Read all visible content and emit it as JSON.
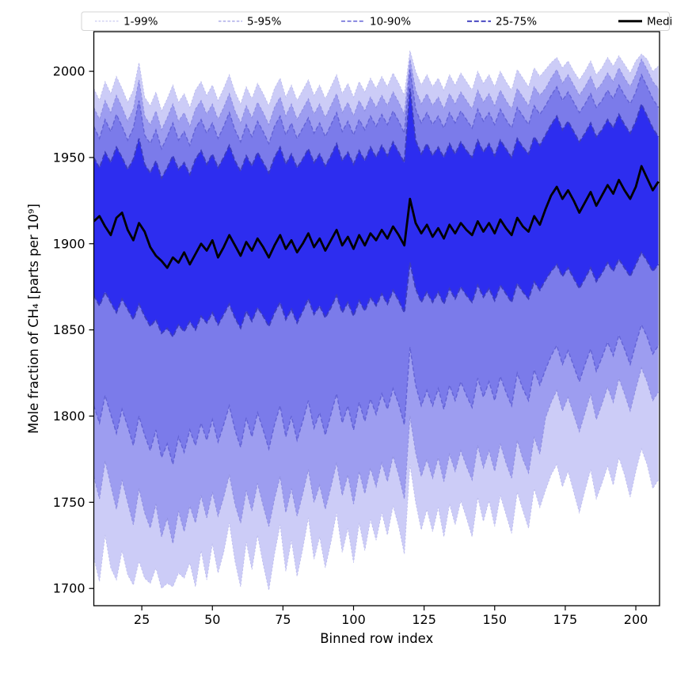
{
  "figure": {
    "background": "#ffffff"
  },
  "legend": {
    "border_color": "#d4d4d4",
    "background": "#ffffff",
    "entries": [
      {
        "label": "1-99%",
        "color": "#bdbdee",
        "width": 1.0,
        "dash": "2.5 2"
      },
      {
        "label": "5-95%",
        "color": "#9090e2",
        "width": 1.2,
        "dash": "3.5 2.2"
      },
      {
        "label": "10-90%",
        "color": "#6363d6",
        "width": 1.5,
        "dash": "5 2.6"
      },
      {
        "label": "25-75%",
        "color": "#3c3cbe",
        "width": 1.9,
        "dash": "6 2.8"
      },
      {
        "label": "Median",
        "color": "#000000",
        "width": 3.0,
        "dash": ""
      }
    ]
  },
  "axes": {
    "x": {
      "label": "Binned row index",
      "ticks": [
        25,
        50,
        75,
        100,
        125,
        150,
        175,
        200
      ]
    },
    "y": {
      "label": "Mole fraction of CH₄ [parts per 10⁹]",
      "ticks": [
        1700,
        1750,
        1800,
        1850,
        1900,
        1950,
        2000
      ]
    }
  },
  "chart_data": {
    "type": "area",
    "title": "",
    "xlabel": "Binned row index",
    "ylabel": "Mole fraction of CH₄ [parts per 10⁹]",
    "x": {
      "start": 8,
      "step": 2,
      "count": 101
    },
    "xlim": [
      8,
      208.4
    ],
    "ylim": [
      1690,
      2023
    ],
    "grid": false,
    "legend_position": "top",
    "bands": [
      {
        "label": "1-99%",
        "lo": "p1",
        "hi": "p99",
        "fill": "#ccccf7",
        "edge": "#bdbdee",
        "edge_width": 0.9,
        "dash": "2.5 2"
      },
      {
        "label": "5-95%",
        "lo": "p5",
        "hi": "p95",
        "fill": "#9d9df0",
        "edge": "#9090e2",
        "edge_width": 1.1,
        "dash": "3.5 2.2"
      },
      {
        "label": "10-90%",
        "lo": "p10",
        "hi": "p90",
        "fill": "#7b7bea",
        "edge": "#6363d6",
        "edge_width": 1.4,
        "dash": "5 2.6"
      },
      {
        "label": "25-75%",
        "lo": "p25",
        "hi": "p75",
        "fill": "#2d2def",
        "edge": "#3c3cbe",
        "edge_width": 1.8,
        "dash": "6 2.8"
      }
    ],
    "median_style": {
      "label": "Median",
      "color": "#000000",
      "width": 2.8
    },
    "series": {
      "p1": [
        1718,
        1704,
        1731,
        1712,
        1705,
        1722,
        1708,
        1702,
        1716,
        1706,
        1703,
        1712,
        1700,
        1703,
        1701,
        1709,
        1706,
        1715,
        1701,
        1722,
        1705,
        1726,
        1709,
        1721,
        1738,
        1716,
        1701,
        1727,
        1711,
        1731,
        1714,
        1699,
        1720,
        1737,
        1710,
        1728,
        1707,
        1723,
        1741,
        1717,
        1730,
        1712,
        1727,
        1744,
        1721,
        1735,
        1715,
        1738,
        1722,
        1740,
        1728,
        1744,
        1731,
        1748,
        1736,
        1720,
        1772,
        1750,
        1734,
        1746,
        1733,
        1747,
        1730,
        1749,
        1737,
        1751,
        1741,
        1730,
        1753,
        1739,
        1751,
        1736,
        1754,
        1743,
        1732,
        1756,
        1745,
        1735,
        1758,
        1747,
        1757,
        1766,
        1772,
        1759,
        1768,
        1756,
        1744,
        1757,
        1769,
        1752,
        1761,
        1771,
        1760,
        1776,
        1766,
        1753,
        1768,
        1781,
        1772,
        1758,
        1763
      ],
      "p5": [
        1765,
        1752,
        1774,
        1760,
        1746,
        1763,
        1750,
        1737,
        1758,
        1744,
        1735,
        1749,
        1730,
        1741,
        1726,
        1745,
        1733,
        1748,
        1738,
        1754,
        1741,
        1756,
        1742,
        1753,
        1766,
        1749,
        1738,
        1757,
        1745,
        1761,
        1748,
        1736,
        1752,
        1765,
        1744,
        1758,
        1742,
        1755,
        1769,
        1750,
        1760,
        1746,
        1759,
        1773,
        1754,
        1766,
        1749,
        1768,
        1755,
        1770,
        1759,
        1773,
        1762,
        1777,
        1766,
        1752,
        1800,
        1779,
        1765,
        1775,
        1764,
        1776,
        1762,
        1778,
        1768,
        1780,
        1771,
        1763,
        1783,
        1770,
        1780,
        1768,
        1784,
        1773,
        1764,
        1786,
        1775,
        1767,
        1788,
        1778,
        1799,
        1808,
        1815,
        1803,
        1811,
        1801,
        1791,
        1802,
        1813,
        1798,
        1807,
        1817,
        1808,
        1822,
        1813,
        1803,
        1816,
        1828,
        1820,
        1809,
        1814
      ],
      "p10": [
        1806,
        1796,
        1812,
        1801,
        1790,
        1804,
        1794,
        1783,
        1800,
        1789,
        1780,
        1792,
        1776,
        1784,
        1772,
        1788,
        1779,
        1792,
        1783,
        1796,
        1786,
        1798,
        1785,
        1795,
        1806,
        1792,
        1782,
        1799,
        1788,
        1802,
        1792,
        1781,
        1795,
        1806,
        1788,
        1800,
        1786,
        1797,
        1809,
        1793,
        1802,
        1789,
        1801,
        1813,
        1796,
        1806,
        1792,
        1808,
        1797,
        1810,
        1801,
        1813,
        1804,
        1816,
        1807,
        1795,
        1840,
        1818,
        1806,
        1815,
        1806,
        1816,
        1804,
        1818,
        1809,
        1820,
        1812,
        1805,
        1822,
        1811,
        1820,
        1809,
        1823,
        1814,
        1806,
        1825,
        1816,
        1809,
        1827,
        1818,
        1827,
        1835,
        1841,
        1830,
        1838,
        1829,
        1820,
        1830,
        1839,
        1826,
        1834,
        1843,
        1835,
        1847,
        1839,
        1830,
        1842,
        1853,
        1846,
        1836,
        1841
      ],
      "p25": [
        1870,
        1864,
        1872,
        1866,
        1860,
        1868,
        1862,
        1856,
        1865,
        1858,
        1852,
        1856,
        1848,
        1851,
        1846,
        1853,
        1849,
        1855,
        1850,
        1858,
        1854,
        1860,
        1853,
        1859,
        1865,
        1857,
        1851,
        1861,
        1855,
        1863,
        1858,
        1852,
        1860,
        1866,
        1856,
        1862,
        1854,
        1861,
        1868,
        1859,
        1864,
        1857,
        1863,
        1870,
        1860,
        1866,
        1858,
        1867,
        1861,
        1869,
        1864,
        1871,
        1865,
        1873,
        1867,
        1860,
        1889,
        1874,
        1866,
        1872,
        1866,
        1872,
        1865,
        1874,
        1868,
        1875,
        1870,
        1866,
        1876,
        1869,
        1874,
        1867,
        1876,
        1871,
        1866,
        1877,
        1872,
        1868,
        1878,
        1873,
        1879,
        1884,
        1888,
        1881,
        1886,
        1880,
        1874,
        1880,
        1886,
        1878,
        1883,
        1889,
        1884,
        1891,
        1886,
        1881,
        1888,
        1895,
        1890,
        1884,
        1888
      ],
      "median": [
        1913,
        1916,
        1910,
        1905,
        1915,
        1918,
        1908,
        1902,
        1912,
        1907,
        1898,
        1893,
        1890,
        1886,
        1892,
        1889,
        1895,
        1888,
        1894,
        1900,
        1896,
        1902,
        1892,
        1898,
        1905,
        1899,
        1893,
        1901,
        1896,
        1903,
        1898,
        1892,
        1899,
        1905,
        1897,
        1902,
        1895,
        1900,
        1906,
        1898,
        1903,
        1896,
        1902,
        1908,
        1899,
        1904,
        1897,
        1905,
        1899,
        1906,
        1902,
        1908,
        1903,
        1910,
        1905,
        1899,
        1926,
        1912,
        1906,
        1911,
        1904,
        1909,
        1903,
        1911,
        1906,
        1912,
        1908,
        1905,
        1913,
        1907,
        1912,
        1906,
        1914,
        1909,
        1905,
        1915,
        1910,
        1907,
        1916,
        1911,
        1920,
        1928,
        1933,
        1926,
        1931,
        1925,
        1918,
        1924,
        1930,
        1922,
        1928,
        1934,
        1929,
        1937,
        1931,
        1926,
        1933,
        1945,
        1938,
        1931,
        1936
      ],
      "p75": [
        1950,
        1944,
        1953,
        1947,
        1956,
        1950,
        1943,
        1949,
        1961,
        1946,
        1941,
        1948,
        1938,
        1944,
        1951,
        1943,
        1947,
        1940,
        1949,
        1954,
        1946,
        1952,
        1944,
        1950,
        1957,
        1948,
        1942,
        1951,
        1945,
        1953,
        1947,
        1941,
        1950,
        1956,
        1946,
        1952,
        1944,
        1949,
        1955,
        1947,
        1952,
        1945,
        1951,
        1958,
        1948,
        1953,
        1946,
        1954,
        1948,
        1956,
        1950,
        1957,
        1951,
        1959,
        1953,
        1947,
        1990,
        1960,
        1952,
        1958,
        1951,
        1956,
        1950,
        1958,
        1952,
        1959,
        1954,
        1950,
        1960,
        1953,
        1958,
        1951,
        1960,
        1955,
        1950,
        1961,
        1956,
        1952,
        1962,
        1957,
        1963,
        1969,
        1974,
        1966,
        1971,
        1965,
        1959,
        1964,
        1970,
        1962,
        1966,
        1972,
        1967,
        1975,
        1969,
        1964,
        1971,
        1981,
        1974,
        1967,
        1962
      ],
      "p90": [
        1968,
        1961,
        1972,
        1965,
        1975,
        1968,
        1960,
        1967,
        1983,
        1963,
        1958,
        1966,
        1955,
        1962,
        1970,
        1960,
        1965,
        1957,
        1967,
        1972,
        1964,
        1970,
        1961,
        1968,
        1976,
        1966,
        1959,
        1969,
        1962,
        1971,
        1965,
        1958,
        1968,
        1974,
        1963,
        1970,
        1961,
        1967,
        1973,
        1964,
        1970,
        1962,
        1969,
        1976,
        1965,
        1971,
        1963,
        1972,
        1966,
        1974,
        1968,
        1975,
        1969,
        1977,
        1971,
        1964,
        2001,
        1978,
        1970,
        1976,
        1969,
        1974,
        1967,
        1976,
        1970,
        1977,
        1972,
        1967,
        1978,
        1971,
        1976,
        1969,
        1978,
        1972,
        1967,
        1979,
        1974,
        1969,
        1980,
        1975,
        1980,
        1986,
        1991,
        1983,
        1988,
        1982,
        1976,
        1981,
        1987,
        1979,
        1983,
        1989,
        1984,
        1992,
        1986,
        1981,
        1988,
        1998,
        1991,
        1984,
        1979
      ],
      "p95": [
        1979,
        1972,
        1983,
        1976,
        1986,
        1979,
        1971,
        1978,
        1995,
        1974,
        1969,
        1977,
        1966,
        1973,
        1981,
        1971,
        1976,
        1968,
        1978,
        1983,
        1975,
        1981,
        1972,
        1979,
        1987,
        1977,
        1970,
        1980,
        1973,
        1982,
        1976,
        1969,
        1979,
        1985,
        1974,
        1981,
        1972,
        1978,
        1984,
        1975,
        1981,
        1973,
        1980,
        1987,
        1976,
        1982,
        1974,
        1983,
        1977,
        1985,
        1979,
        1986,
        1980,
        1988,
        1982,
        1975,
        2007,
        1989,
        1981,
        1987,
        1980,
        1985,
        1978,
        1987,
        1981,
        1988,
        1983,
        1978,
        1989,
        1982,
        1987,
        1980,
        1989,
        1983,
        1978,
        1990,
        1985,
        1980,
        1991,
        1986,
        1990,
        1996,
        2001,
        1993,
        1998,
        1992,
        1986,
        1991,
        1997,
        1989,
        1993,
        1999,
        1994,
        2002,
        1996,
        1991,
        1998,
        2007,
        2001,
        1994,
        1990
      ],
      "p99": [
        1990,
        1983,
        1994,
        1987,
        1997,
        1990,
        1982,
        1989,
        2005,
        1985,
        1980,
        1988,
        1977,
        1984,
        1992,
        1982,
        1987,
        1979,
        1989,
        1994,
        1986,
        1992,
        1983,
        1990,
        1998,
        1988,
        1981,
        1991,
        1984,
        1993,
        1987,
        1980,
        1990,
        1996,
        1985,
        1992,
        1983,
        1989,
        1995,
        1986,
        1992,
        1984,
        1991,
        1998,
        1987,
        1993,
        1985,
        1994,
        1988,
        1996,
        1990,
        1997,
        1991,
        1999,
        1993,
        1986,
        2012,
        2000,
        1992,
        1998,
        1991,
        1996,
        1989,
        1998,
        1992,
        1999,
        1994,
        1989,
        2000,
        1993,
        1998,
        1991,
        2000,
        1994,
        1989,
        2001,
        1996,
        1991,
        2002,
        1997,
        2001,
        2005,
        2008,
        2002,
        2006,
        2000,
        1995,
        2000,
        2006,
        1998,
        2002,
        2008,
        2003,
        2009,
        2004,
        1999,
        2006,
        2010,
        2007,
        2000,
        2003
      ]
    }
  }
}
